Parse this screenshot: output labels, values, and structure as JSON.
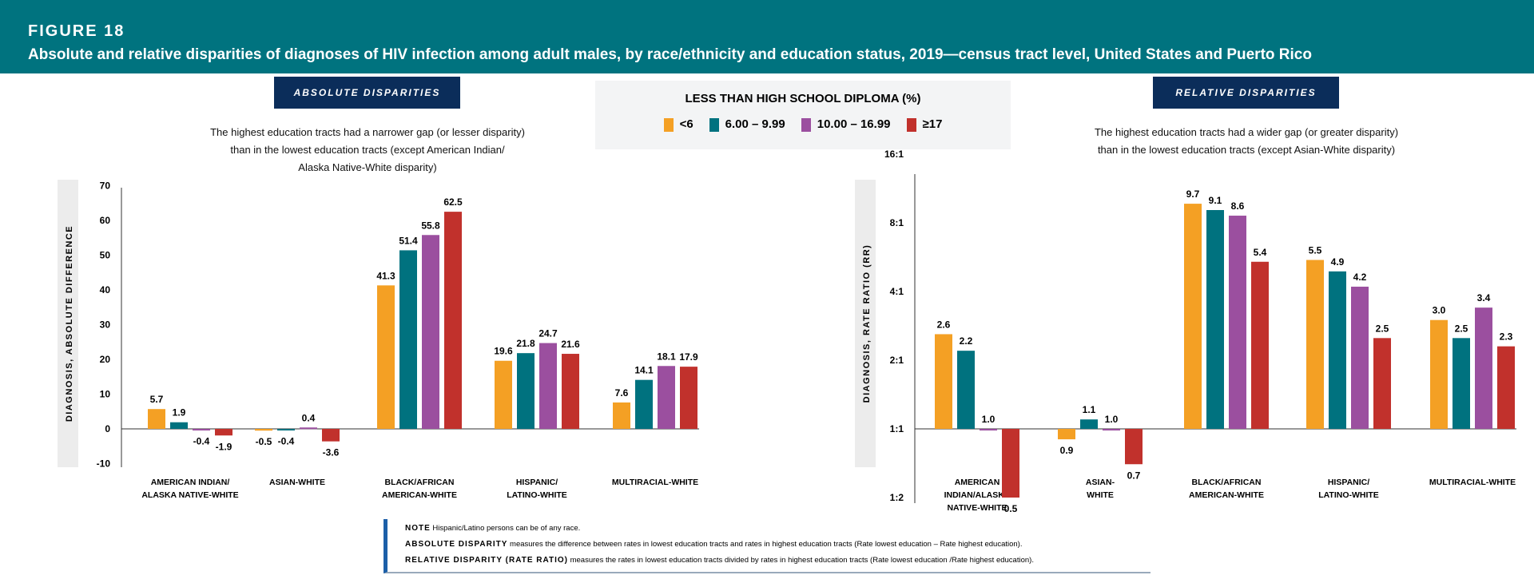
{
  "header": {
    "figure": "FIGURE 18",
    "title": "Absolute and relative disparities of diagnoses of HIV infection among adult males, by race/ethnicity and education status, 2019—census tract level, United States and Puerto Rico"
  },
  "legend": {
    "title": "LESS THAN HIGH SCHOOL DIPLOMA (%)",
    "items": [
      {
        "label": "<6",
        "color": "#f4a024"
      },
      {
        "label": "6.00 – 9.99",
        "color": "#00727f"
      },
      {
        "label": "10.00 – 16.99",
        "color": "#9b4f9f"
      },
      {
        "label": "≥17",
        "color": "#c1312c"
      }
    ]
  },
  "chart_data": [
    {
      "type": "bar",
      "tag": "ABSOLUTE DISPARITIES",
      "subtitle": [
        "The highest education tracts had a narrower gap (or lesser disparity)",
        "than in the lowest education tracts (except American Indian/",
        "Alaska Native-White disparity)"
      ],
      "ylabel": "DIAGNOSIS, ABSOLUTE DIFFERENCE",
      "ylim": [
        -10,
        70
      ],
      "yticks": [
        "-10",
        "0",
        "10",
        "20",
        "30",
        "40",
        "50",
        "60",
        "70"
      ],
      "categories": [
        [
          "AMERICAN INDIAN/",
          "ALASKA NATIVE-WHITE"
        ],
        [
          "ASIAN-WHITE"
        ],
        [
          "BLACK/AFRICAN",
          "AMERICAN-WHITE"
        ],
        [
          "HISPANIC/",
          "LATINO-WHITE"
        ],
        [
          "MULTIRACIAL-WHITE"
        ]
      ],
      "series": [
        {
          "name": "<6",
          "values": [
            5.7,
            -0.5,
            41.3,
            19.6,
            7.6
          ]
        },
        {
          "name": "6.00 – 9.99",
          "values": [
            1.9,
            -0.4,
            51.4,
            21.8,
            14.1
          ]
        },
        {
          "name": "10.00 – 16.99",
          "values": [
            -0.4,
            0.4,
            55.8,
            24.7,
            18.1
          ]
        },
        {
          "name": "≥17",
          "values": [
            -1.9,
            -3.6,
            62.5,
            21.6,
            17.9
          ]
        }
      ]
    },
    {
      "type": "bar",
      "scale": "log2",
      "tag": "RELATIVE DISPARITIES",
      "subtitle": [
        "The highest education tracts had a wider gap (or greater disparity)",
        "than in the lowest education tracts (except Asian-White disparity)"
      ],
      "ylabel": "DIAGNOSIS, RATE RATIO (RR)",
      "ylim": [
        0.5,
        16
      ],
      "yticks": [
        "1:2",
        "1:1",
        "2:1",
        "4:1",
        "8:1",
        "16:1"
      ],
      "categories": [
        [
          "AMERICAN",
          "INDIAN/ALASKA",
          "NATIVE-WHITE"
        ],
        [
          "ASIAN-",
          "WHITE"
        ],
        [
          "BLACK/AFRICAN",
          "AMERICAN-WHITE"
        ],
        [
          "HISPANIC/",
          "LATINO-WHITE"
        ],
        [
          "MULTIRACIAL-WHITE"
        ]
      ],
      "series": [
        {
          "name": "<6",
          "values": [
            2.6,
            0.9,
            9.7,
            5.5,
            3.0
          ]
        },
        {
          "name": "6.00 – 9.99",
          "values": [
            2.2,
            1.1,
            9.1,
            4.9,
            2.5
          ]
        },
        {
          "name": "10.00 – 16.99",
          "values": [
            1.0,
            1.0,
            8.6,
            4.2,
            3.4
          ]
        },
        {
          "name": "≥17",
          "values": [
            0.5,
            0.7,
            5.4,
            2.5,
            2.3
          ]
        }
      ]
    }
  ],
  "note": {
    "note_label": "NOTE",
    "note_text": "Hispanic/Latino persons can be of any race.",
    "abs_label": "ABSOLUTE DISPARITY",
    "abs_text": "measures the difference between rates in lowest education tracts and rates in highest education tracts (Rate lowest education – Rate highest education).",
    "rel_label": "RELATIVE DISPARITY (RATE RATIO)",
    "rel_text": "measures the rates in lowest education tracts divided by rates in highest education tracts (Rate lowest education /Rate highest education)."
  }
}
